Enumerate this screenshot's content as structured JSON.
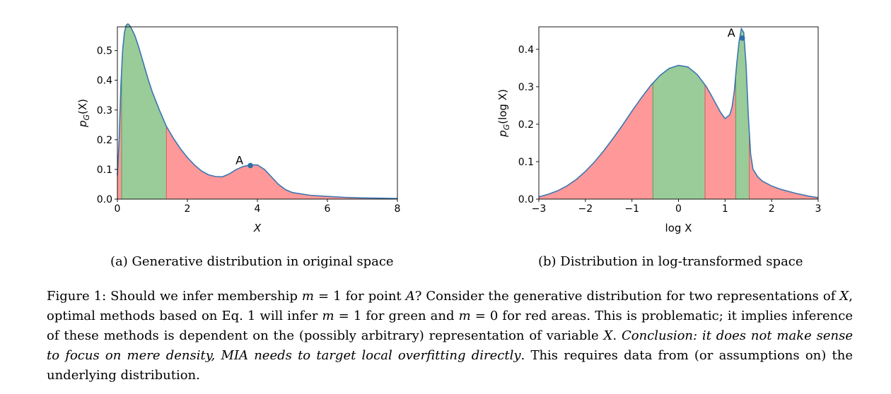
{
  "chart_data": [
    {
      "type": "area",
      "id": "a",
      "subcaption": "(a) Generative distribution in original space",
      "xlabel": "X",
      "ylabel": "p_G(X)",
      "ylabel_main": "p",
      "ylabel_sub": "G",
      "ylabel_arg": "(X)",
      "xlim": [
        0,
        8
      ],
      "ylim": [
        0,
        0.58
      ],
      "xticks": [
        0,
        2,
        4,
        6,
        8
      ],
      "xtick_labels": [
        "0",
        "2",
        "4",
        "6",
        "8"
      ],
      "yticks": [
        0.0,
        0.1,
        0.2,
        0.3,
        0.4,
        0.5
      ],
      "ytick_labels": [
        "0.0",
        "0.1",
        "0.2",
        "0.3",
        "0.4",
        "0.5"
      ],
      "grid": false,
      "line_color": "#3b76b0",
      "green_color": "#99cc99",
      "red_color": "#ff9999",
      "curve": {
        "x": [
          0.0,
          0.05,
          0.1,
          0.15,
          0.2,
          0.25,
          0.3,
          0.35,
          0.4,
          0.5,
          0.6,
          0.7,
          0.8,
          0.9,
          1.0,
          1.2,
          1.4,
          1.6,
          1.8,
          2.0,
          2.2,
          2.4,
          2.6,
          2.8,
          3.0,
          3.2,
          3.4,
          3.6,
          3.8,
          4.0,
          4.2,
          4.4,
          4.6,
          4.8,
          5.0,
          5.5,
          6.0,
          6.5,
          7.0,
          7.5,
          8.0
        ],
        "y": [
          0.08,
          0.2,
          0.38,
          0.5,
          0.56,
          0.585,
          0.59,
          0.585,
          0.575,
          0.55,
          0.515,
          0.475,
          0.435,
          0.395,
          0.36,
          0.3,
          0.245,
          0.205,
          0.17,
          0.14,
          0.115,
          0.095,
          0.082,
          0.076,
          0.075,
          0.085,
          0.1,
          0.11,
          0.115,
          0.115,
          0.1,
          0.075,
          0.05,
          0.032,
          0.022,
          0.013,
          0.009,
          0.006,
          0.004,
          0.003,
          0.002
        ]
      },
      "regions": [
        {
          "color": "red",
          "x0": 0.0,
          "x1": 0.12
        },
        {
          "color": "green",
          "x0": 0.12,
          "x1": 1.4
        },
        {
          "color": "red",
          "x0": 1.4,
          "x1": 8.0
        }
      ],
      "point": {
        "label": "A",
        "x": 3.8,
        "y": 0.113
      }
    },
    {
      "type": "area",
      "id": "b",
      "subcaption": "(b) Distribution in log-transformed space",
      "xlabel": "log X",
      "ylabel": "p_G(log X)",
      "ylabel_main": "p",
      "ylabel_sub": "G",
      "ylabel_arg": "(log X)",
      "xlim": [
        -3,
        3
      ],
      "ylim": [
        0,
        0.46
      ],
      "xticks": [
        -3,
        -2,
        -1,
        0,
        1,
        2,
        3
      ],
      "xtick_labels": [
        "−3",
        "−2",
        "−1",
        "0",
        "1",
        "2",
        "3"
      ],
      "yticks": [
        0.0,
        0.1,
        0.2,
        0.3,
        0.4
      ],
      "ytick_labels": [
        "0.0",
        "0.1",
        "0.2",
        "0.3",
        "0.4"
      ],
      "grid": false,
      "line_color": "#3b76b0",
      "green_color": "#99cc99",
      "red_color": "#ff9999",
      "curve": {
        "x": [
          -3.0,
          -2.8,
          -2.6,
          -2.4,
          -2.2,
          -2.0,
          -1.8,
          -1.6,
          -1.4,
          -1.2,
          -1.0,
          -0.8,
          -0.6,
          -0.4,
          -0.2,
          0.0,
          0.2,
          0.4,
          0.6,
          0.7,
          0.8,
          0.9,
          1.0,
          1.1,
          1.15,
          1.2,
          1.25,
          1.3,
          1.35,
          1.4,
          1.45,
          1.5,
          1.55,
          1.6,
          1.7,
          1.8,
          2.0,
          2.2,
          2.5,
          2.8,
          3.0
        ],
        "y": [
          0.006,
          0.013,
          0.022,
          0.035,
          0.052,
          0.074,
          0.1,
          0.13,
          0.163,
          0.198,
          0.235,
          0.27,
          0.303,
          0.33,
          0.349,
          0.357,
          0.353,
          0.333,
          0.3,
          0.278,
          0.255,
          0.232,
          0.215,
          0.225,
          0.245,
          0.29,
          0.36,
          0.42,
          0.455,
          0.445,
          0.36,
          0.22,
          0.12,
          0.08,
          0.06,
          0.048,
          0.035,
          0.026,
          0.016,
          0.008,
          0.004
        ]
      },
      "regions": [
        {
          "color": "red",
          "x0": -3.0,
          "x1": -0.55
        },
        {
          "color": "green",
          "x0": -0.55,
          "x1": 0.57
        },
        {
          "color": "red",
          "x0": 0.57,
          "x1": 1.23
        },
        {
          "color": "green",
          "x0": 1.23,
          "x1": 1.52
        },
        {
          "color": "red",
          "x0": 1.52,
          "x1": 3.0
        }
      ],
      "point": {
        "label": "A",
        "x": 1.37,
        "y": 0.43
      }
    }
  ],
  "caption": {
    "lead": "Figure 1: Should we infer membership ",
    "m_var": "m",
    "eq_one": " = 1",
    "mid1": " for point ",
    "A_var": "A",
    "mid2": "? Consider the generative distribution for two representations of ",
    "X_var": "X",
    "mid3": ", optimal methods based on Eq. 1 will infer ",
    "m_var2": "m",
    "eq_one2": " = 1",
    "mid4": " for green and ",
    "m_var3": "m",
    "eq_zero": " = 0",
    "mid5": " for red areas. This is problematic; it implies inference of these methods is dependent on the (possibly arbitrary) representation of variable ",
    "X_var2": "X",
    "mid6": ". ",
    "italic": "Conclusion: it does not make sense to focus on mere density, MIA needs to target local overfitting directly",
    "tail": ". This requires data from (or assumptions on) the underlying distribution."
  }
}
